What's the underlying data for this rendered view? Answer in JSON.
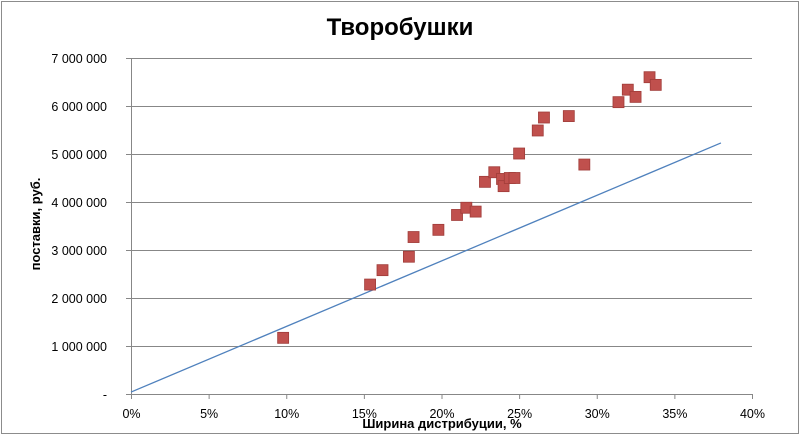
{
  "chart_data": {
    "type": "scatter",
    "title": "Творобушки",
    "xlabel": "Ширина дистрибуции, %",
    "ylabel": "поставки, руб.",
    "xlim": [
      0,
      0.4
    ],
    "ylim": [
      0,
      7000000
    ],
    "x_ticks": [
      0,
      0.05,
      0.1,
      0.15,
      0.2,
      0.25,
      0.3,
      0.35,
      0.4
    ],
    "x_tick_labels": [
      "0%",
      "5%",
      "10%",
      "15%",
      "20%",
      "25%",
      "30%",
      "35%",
      "40%"
    ],
    "y_ticks": [
      0,
      1000000,
      2000000,
      3000000,
      4000000,
      5000000,
      6000000,
      7000000
    ],
    "y_tick_labels": [
      "-",
      "1 000 000",
      "2 000 000",
      "3 000 000",
      "4 000 000",
      "5 000 000",
      "6 000 000",
      "7 000 000"
    ],
    "grid": "horizontal",
    "legend": "none",
    "marker_color": "#c0504d",
    "marker_edge_color": "#a03c39",
    "line_color": "#4f81bd",
    "series": [
      {
        "type": "scatter",
        "points": [
          {
            "x": 0.098,
            "y": 1170000
          },
          {
            "x": 0.154,
            "y": 2280000
          },
          {
            "x": 0.162,
            "y": 2580000
          },
          {
            "x": 0.179,
            "y": 2860000
          },
          {
            "x": 0.182,
            "y": 3270000
          },
          {
            "x": 0.198,
            "y": 3420000
          },
          {
            "x": 0.21,
            "y": 3730000
          },
          {
            "x": 0.216,
            "y": 3880000
          },
          {
            "x": 0.222,
            "y": 3800000
          },
          {
            "x": 0.228,
            "y": 4420000
          },
          {
            "x": 0.234,
            "y": 4620000
          },
          {
            "x": 0.239,
            "y": 4480000
          },
          {
            "x": 0.24,
            "y": 4330000
          },
          {
            "x": 0.244,
            "y": 4500000
          },
          {
            "x": 0.247,
            "y": 4500000
          },
          {
            "x": 0.25,
            "y": 5010000
          },
          {
            "x": 0.262,
            "y": 5490000
          },
          {
            "x": 0.266,
            "y": 5760000
          },
          {
            "x": 0.282,
            "y": 5790000
          },
          {
            "x": 0.292,
            "y": 4780000
          },
          {
            "x": 0.314,
            "y": 6080000
          },
          {
            "x": 0.32,
            "y": 6340000
          },
          {
            "x": 0.325,
            "y": 6190000
          },
          {
            "x": 0.334,
            "y": 6600000
          },
          {
            "x": 0.338,
            "y": 6440000
          }
        ]
      },
      {
        "type": "line",
        "points": [
          {
            "x": 0.0,
            "y": 40000
          },
          {
            "x": 0.38,
            "y": 5230000
          }
        ]
      }
    ]
  }
}
